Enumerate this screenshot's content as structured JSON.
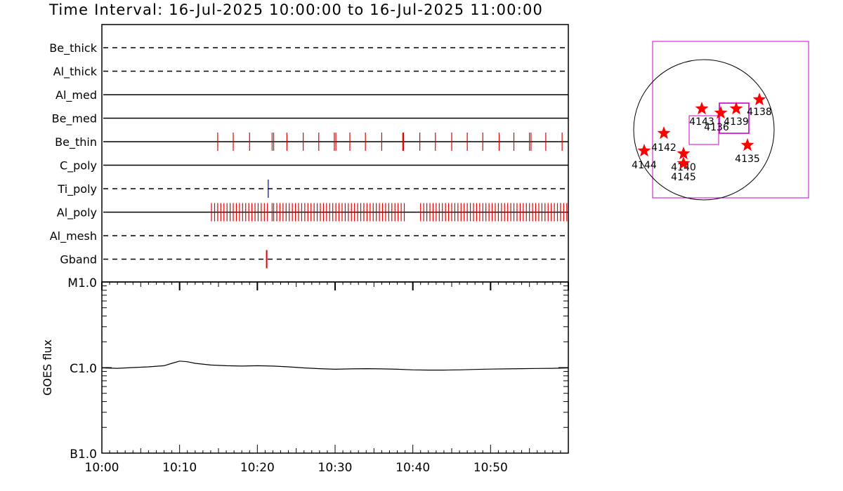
{
  "title": "Time Interval: 16-Jul-2025 10:00:00 to 16-Jul-2025 11:00:00",
  "colors": {
    "event": "#e00000",
    "ti_event": "#0000cc",
    "fov": "#cc00cc",
    "star": "#ff0000",
    "axis": "#000000"
  },
  "chart_data": [
    {
      "type": "timeline",
      "x_unit": "minutes after 10:00",
      "xlim": [
        0,
        60
      ],
      "channels": [
        {
          "name": "Be_thick",
          "style": "dashed",
          "events": []
        },
        {
          "name": "Al_thick",
          "style": "dashed",
          "events": []
        },
        {
          "name": "Al_med",
          "style": "solid",
          "events": []
        },
        {
          "name": "Be_med",
          "style": "solid",
          "events": []
        },
        {
          "name": "Be_thin",
          "style": "solid",
          "events": [
            14.9,
            16.9,
            19.0,
            21.9,
            22.1,
            23.8,
            25.9,
            27.9,
            29.9,
            30.1,
            31.9,
            33.9,
            36.0,
            38.7,
            38.8,
            40.9,
            42.9,
            45.0,
            47.0,
            49.0,
            51.1,
            53.0,
            55.0,
            55.2,
            57.1,
            59.2
          ]
        },
        {
          "name": "C_poly",
          "style": "solid",
          "events": []
        },
        {
          "name": "Ti_poly",
          "style": "dashed",
          "events": [
            21.4
          ]
        },
        {
          "name": "Al_poly",
          "style": "solid",
          "events": [
            14.1,
            14.5,
            14.9,
            15.3,
            15.7,
            16.1,
            16.5,
            16.9,
            17.3,
            17.7,
            18.1,
            18.5,
            18.9,
            19.3,
            19.7,
            20.1,
            20.5,
            20.9,
            21.3,
            21.9,
            22.1,
            22.5,
            22.9,
            23.3,
            23.7,
            24.1,
            24.5,
            24.9,
            25.3,
            25.7,
            26.1,
            26.5,
            26.9,
            27.3,
            27.7,
            28.1,
            28.5,
            28.9,
            29.3,
            29.7,
            30.1,
            30.5,
            30.9,
            31.3,
            31.7,
            32.1,
            32.5,
            32.9,
            33.3,
            33.7,
            34.1,
            34.5,
            34.9,
            35.3,
            35.7,
            36.1,
            36.5,
            36.9,
            37.3,
            37.7,
            38.1,
            38.5,
            38.9,
            41.0,
            41.4,
            41.8,
            42.2,
            42.6,
            43.0,
            43.4,
            43.8,
            44.2,
            44.6,
            45.0,
            45.4,
            45.8,
            46.2,
            46.6,
            47.0,
            47.4,
            47.8,
            48.2,
            48.6,
            49.0,
            49.4,
            49.8,
            50.2,
            50.6,
            51.0,
            51.4,
            51.8,
            52.2,
            52.6,
            53.0,
            53.4,
            53.8,
            54.2,
            54.6,
            55.0,
            55.4,
            55.8,
            56.2,
            56.6,
            57.0,
            57.4,
            57.8,
            58.2,
            58.6,
            59.0,
            59.4,
            59.8
          ]
        },
        {
          "name": "Al_mesh",
          "style": "dashed",
          "events": []
        },
        {
          "name": "Gband",
          "style": "dashed",
          "events": [
            21.2
          ]
        }
      ]
    },
    {
      "type": "line",
      "ylabel": "GOES flux",
      "yscale": "log",
      "ylim": [
        1e-07,
        1e-05
      ],
      "ytick_values": [
        1e-07,
        1e-06,
        1e-05
      ],
      "ytick_labels": [
        "B1.0",
        "C1.0",
        "M1.0"
      ],
      "xlim": [
        0,
        60
      ],
      "xtick_values": [
        0,
        10,
        20,
        30,
        40,
        50
      ],
      "xtick_labels": [
        "10:00",
        "10:10",
        "10:20",
        "10:30",
        "10:40",
        "10:50"
      ],
      "series": [
        {
          "x": [
            0,
            2,
            4,
            6,
            8,
            9,
            10,
            11,
            12,
            14,
            16,
            18,
            20,
            22,
            24,
            26,
            28,
            30,
            32,
            34,
            36,
            38,
            40,
            42,
            44,
            46,
            48,
            50,
            52,
            54,
            56,
            58,
            60
          ],
          "y": [
            9.9e-07,
            9.8e-07,
            1e-06,
            1.02e-06,
            1.05e-06,
            1.12e-06,
            1.19e-06,
            1.17e-06,
            1.12e-06,
            1.07e-06,
            1.05e-06,
            1.04e-06,
            1.05e-06,
            1.04e-06,
            1.02e-06,
            9.9e-07,
            9.7e-07,
            9.55e-07,
            9.65e-07,
            9.7e-07,
            9.65e-07,
            9.55e-07,
            9.4e-07,
            9.35e-07,
            9.35e-07,
            9.4e-07,
            9.5e-07,
            9.6e-07,
            9.65e-07,
            9.7e-07,
            9.75e-07,
            9.8e-07,
            9.9e-07
          ]
        }
      ]
    }
  ],
  "sun_map": {
    "ar_labels": [
      "4143",
      "4136",
      "4139",
      "4138",
      "4142",
      "4144",
      "4140",
      "4145",
      "4135"
    ]
  }
}
